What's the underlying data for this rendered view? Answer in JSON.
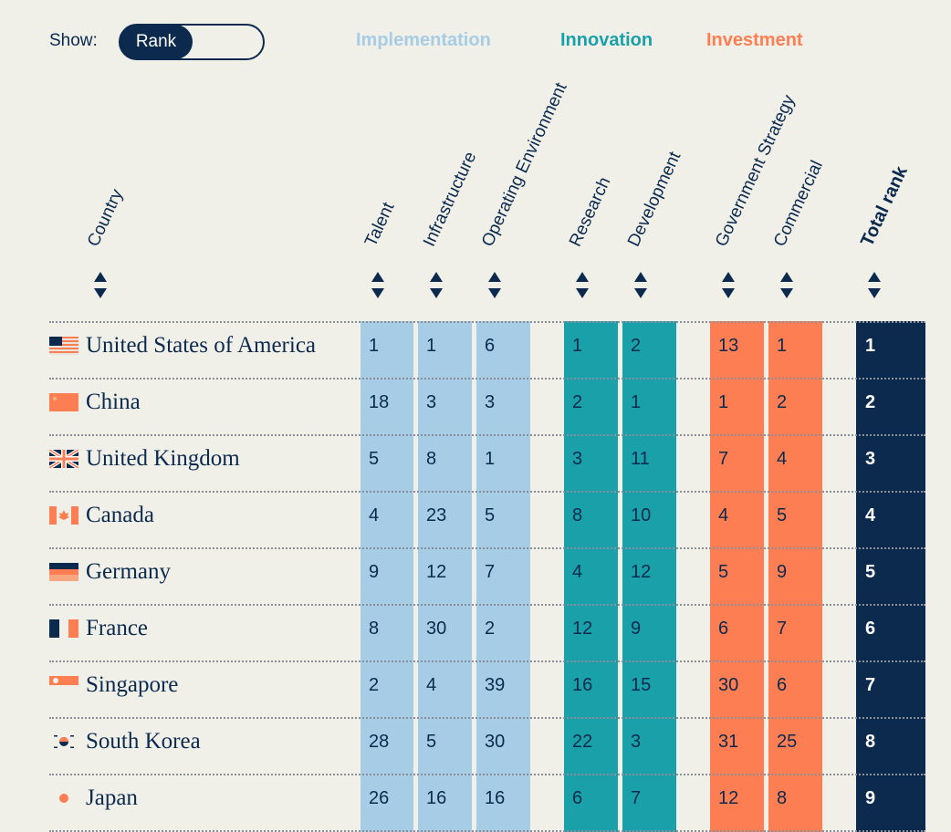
{
  "controls": {
    "show_label": "Show:",
    "toggle_selected": "Rank"
  },
  "legend": {
    "implementation": {
      "label": "Implementation",
      "color": "#a6cde5"
    },
    "innovation": {
      "label": "Innovation",
      "color": "#1aa0a8"
    },
    "investment": {
      "label": "Investment",
      "color": "#fd7e52"
    }
  },
  "headers": {
    "country": "Country",
    "talent": "Talent",
    "infrastructure": "Infrastructure",
    "operating_environment": "Operating Environment",
    "research": "Research",
    "development": "Development",
    "government_strategy": "Government Strategy",
    "commercial": "Commercial",
    "total_rank": "Total rank"
  },
  "rows": [
    {
      "country": "United States of America",
      "flag": "usa-flag-icon",
      "talent": "1",
      "infrastructure": "1",
      "operating_environment": "6",
      "research": "1",
      "development": "2",
      "government_strategy": "13",
      "commercial": "1",
      "total_rank": "1"
    },
    {
      "country": "China",
      "flag": "china-flag-icon",
      "talent": "18",
      "infrastructure": "3",
      "operating_environment": "3",
      "research": "2",
      "development": "1",
      "government_strategy": "1",
      "commercial": "2",
      "total_rank": "2"
    },
    {
      "country": "United Kingdom",
      "flag": "uk-flag-icon",
      "talent": "5",
      "infrastructure": "8",
      "operating_environment": "1",
      "research": "3",
      "development": "11",
      "government_strategy": "7",
      "commercial": "4",
      "total_rank": "3"
    },
    {
      "country": "Canada",
      "flag": "canada-flag-icon",
      "talent": "4",
      "infrastructure": "23",
      "operating_environment": "5",
      "research": "8",
      "development": "10",
      "government_strategy": "4",
      "commercial": "5",
      "total_rank": "4"
    },
    {
      "country": "Germany",
      "flag": "germany-flag-icon",
      "talent": "9",
      "infrastructure": "12",
      "operating_environment": "7",
      "research": "4",
      "development": "12",
      "government_strategy": "5",
      "commercial": "9",
      "total_rank": "5"
    },
    {
      "country": "France",
      "flag": "france-flag-icon",
      "talent": "8",
      "infrastructure": "30",
      "operating_environment": "2",
      "research": "12",
      "development": "9",
      "government_strategy": "6",
      "commercial": "7",
      "total_rank": "6"
    },
    {
      "country": "Singapore",
      "flag": "singapore-flag-icon",
      "talent": "2",
      "infrastructure": "4",
      "operating_environment": "39",
      "research": "16",
      "development": "15",
      "government_strategy": "30",
      "commercial": "6",
      "total_rank": "7"
    },
    {
      "country": "South Korea",
      "flag": "south-korea-flag-icon",
      "talent": "28",
      "infrastructure": "5",
      "operating_environment": "30",
      "research": "22",
      "development": "3",
      "government_strategy": "31",
      "commercial": "25",
      "total_rank": "8"
    },
    {
      "country": "Japan",
      "flag": "japan-flag-icon",
      "talent": "26",
      "infrastructure": "16",
      "operating_environment": "16",
      "research": "6",
      "development": "7",
      "government_strategy": "12",
      "commercial": "8",
      "total_rank": "9"
    }
  ]
}
